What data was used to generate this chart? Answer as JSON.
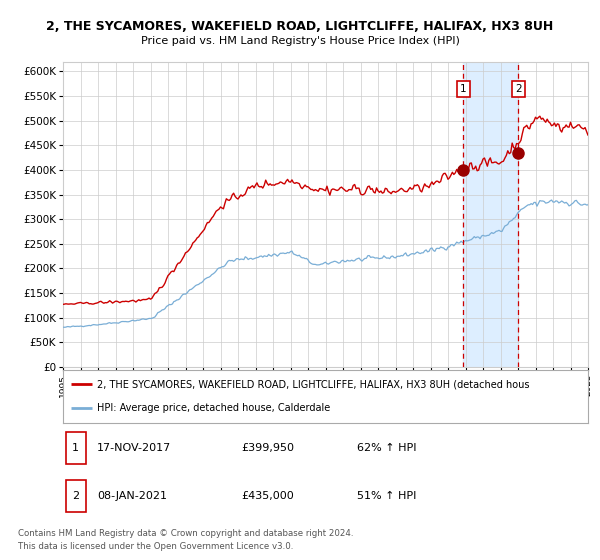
{
  "title1": "2, THE SYCAMORES, WAKEFIELD ROAD, LIGHTCLIFFE, HALIFAX, HX3 8UH",
  "title2": "Price paid vs. HM Land Registry's House Price Index (HPI)",
  "ylabel_ticks": [
    "£0",
    "£50K",
    "£100K",
    "£150K",
    "£200K",
    "£250K",
    "£300K",
    "£350K",
    "£400K",
    "£450K",
    "£500K",
    "£550K",
    "£600K"
  ],
  "ytick_vals": [
    0,
    50000,
    100000,
    150000,
    200000,
    250000,
    300000,
    350000,
    400000,
    450000,
    500000,
    550000,
    600000
  ],
  "ylim": [
    0,
    620000
  ],
  "sale1_date_num": 2017.88,
  "sale1_price": 399950,
  "sale1_label": "1",
  "sale2_date_num": 2021.02,
  "sale2_price": 435000,
  "sale2_label": "2",
  "legend_line1": "2, THE SYCAMORES, WAKEFIELD ROAD, LIGHTCLIFFE, HALIFAX, HX3 8UH (detached hous",
  "legend_line2": "HPI: Average price, detached house, Calderdale",
  "footer": "Contains HM Land Registry data © Crown copyright and database right 2024.\nThis data is licensed under the Open Government Licence v3.0.",
  "property_color": "#cc0000",
  "hpi_color": "#7aaed6",
  "shaded_color": "#ddeeff",
  "grid_color": "#cccccc",
  "bg_color": "#ffffff"
}
